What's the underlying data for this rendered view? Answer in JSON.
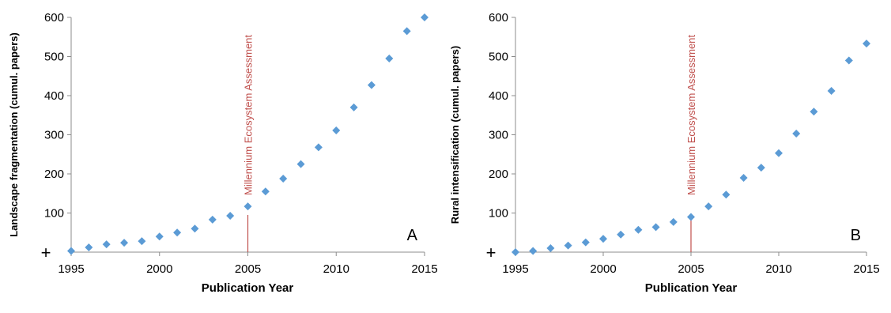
{
  "chart_data": [
    {
      "type": "scatter",
      "panel_label": "A",
      "xlabel": "Publication Year",
      "ylabel": "Landscape fragmentation (cumul. papers)",
      "xlim": [
        1995,
        2015
      ],
      "ylim": [
        0,
        600
      ],
      "xticks": [
        1995,
        2000,
        2005,
        2010,
        2015
      ],
      "yticks": [
        100,
        200,
        300,
        400,
        500,
        600
      ],
      "origin_marker": "+",
      "grid": false,
      "marker": "diamond",
      "marker_color": "#5b9bd5",
      "x": [
        1995,
        1996,
        1997,
        1998,
        1999,
        2000,
        2001,
        2002,
        2003,
        2004,
        2005,
        2006,
        2007,
        2008,
        2009,
        2010,
        2011,
        2012,
        2013,
        2014,
        2015
      ],
      "y": [
        3,
        12,
        20,
        24,
        28,
        40,
        50,
        60,
        83,
        93,
        117,
        155,
        188,
        225,
        268,
        311,
        370,
        427,
        495,
        565,
        600
      ],
      "annotation": {
        "text": "Millennium Ecosystem Assessment",
        "x": 2005,
        "y_top": 95,
        "color": "#c0504d"
      }
    },
    {
      "type": "scatter",
      "panel_label": "B",
      "xlabel": "Publication Year",
      "ylabel": "Rural intensification (cumul. papers)",
      "xlim": [
        1995,
        2015
      ],
      "ylim": [
        0,
        600
      ],
      "xticks": [
        1995,
        2000,
        2005,
        2010,
        2015
      ],
      "yticks": [
        100,
        200,
        300,
        400,
        500,
        600
      ],
      "origin_marker": "+",
      "grid": false,
      "marker": "diamond",
      "marker_color": "#5b9bd5",
      "x": [
        1995,
        1996,
        1997,
        1998,
        1999,
        2000,
        2001,
        2002,
        2003,
        2004,
        2005,
        2006,
        2007,
        2008,
        2009,
        2010,
        2011,
        2012,
        2013,
        2014,
        2015
      ],
      "y": [
        0,
        3,
        10,
        17,
        25,
        34,
        45,
        57,
        64,
        77,
        90,
        117,
        147,
        190,
        216,
        253,
        303,
        359,
        412,
        490,
        533
      ],
      "annotation": {
        "text": "Millennium Ecosystem Assessment",
        "x": 2005,
        "y_top": 85,
        "color": "#c0504d"
      }
    }
  ]
}
